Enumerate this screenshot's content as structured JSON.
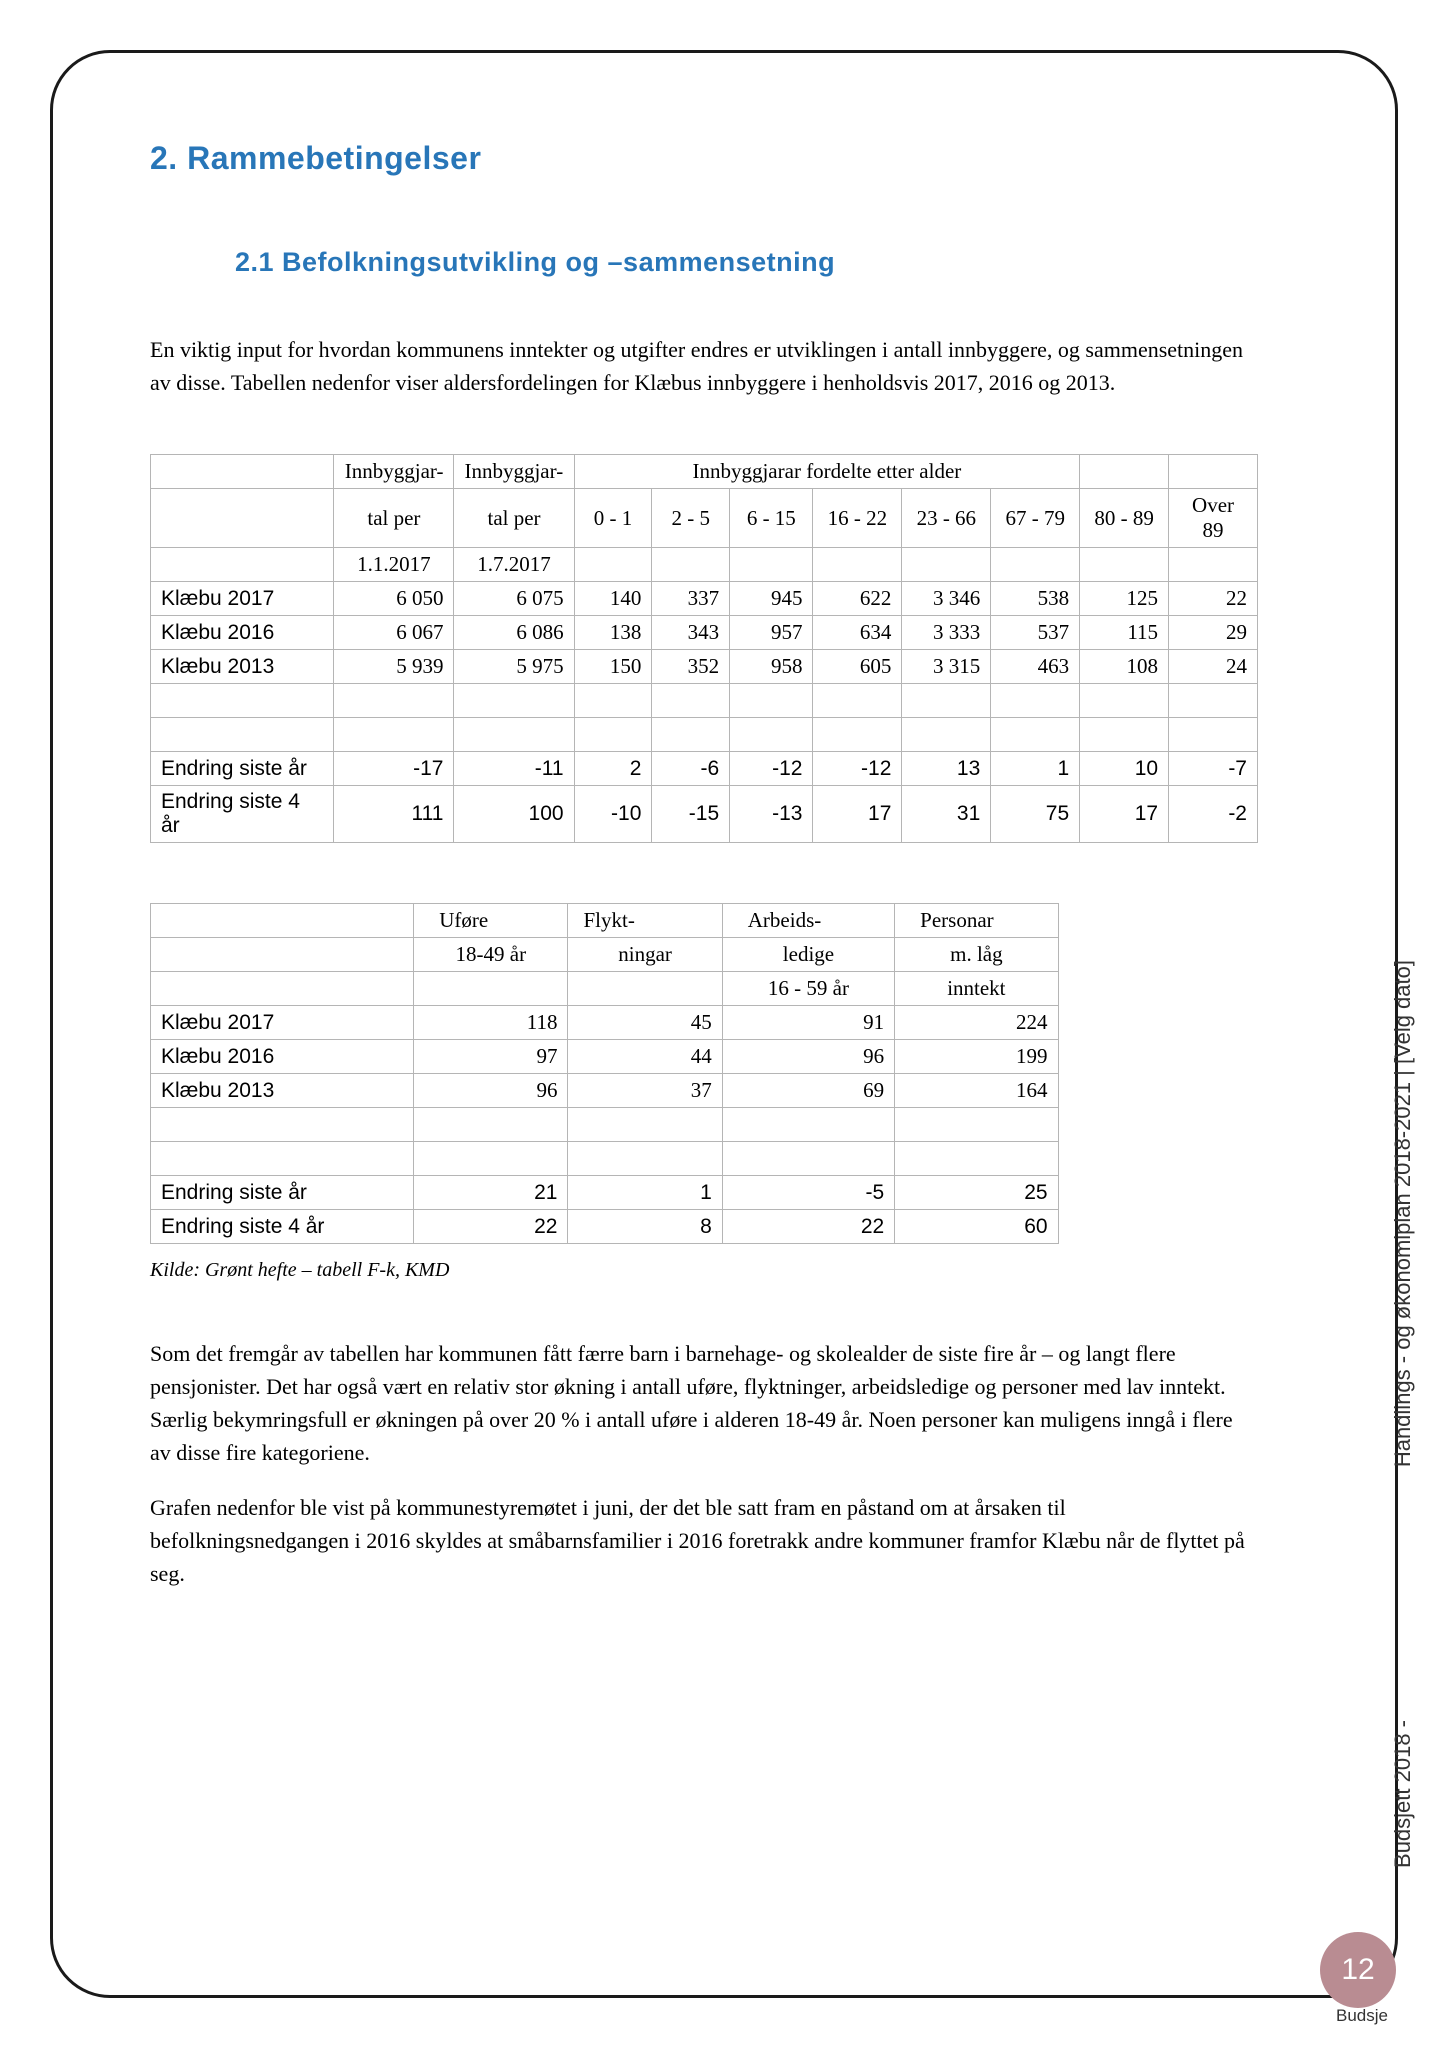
{
  "headings": {
    "h1": "2. Rammebetingelser",
    "h2": "2.1 Befolkningsutvikling og –sammensetning"
  },
  "paragraphs": {
    "intro": "En viktig input for hvordan kommunens inntekter og utgifter endres er utviklingen i antall innbyggere, og sammensetningen av disse. Tabellen nedenfor viser aldersfordelingen for Klæbus innbyggere i henholdsvis 2017, 2016 og 2013.",
    "analysis": "Som det fremgår av tabellen har kommunen fått færre barn i barnehage- og skolealder de siste fire år – og langt flere pensjonister. Det har også vært en relativ stor økning i antall uføre, flyktninger, arbeidsledige og personer med lav inntekt. Særlig bekymringsfull er økningen på over 20 % i antall uføre i alderen 18-49 år. Noen personer kan muligens inngå i flere av disse fire kategoriene.",
    "closing": "Grafen nedenfor ble vist på kommunestyremøtet i juni, der det ble satt fram en påstand om at årsaken til befolkningsnedgangen i 2016 skyldes at småbarnsfamilier i 2016 foretrakk andre kommuner framfor Klæbu når de flyttet på seg."
  },
  "table1": {
    "header_group_left": "Innbyggjar-",
    "header_group_left2": "Innbyggjar-",
    "header_group_right": "Innbyggjarar fordelte etter alder",
    "sub_headers": {
      "c1": "tal per",
      "c2": "tal per",
      "c3": "0 - 1",
      "c4": "2 - 5",
      "c5": "6 - 15",
      "c6": "16 - 22",
      "c7": "23 - 66",
      "c8": "67 - 79",
      "c9": "80 - 89",
      "c10": "Over 89"
    },
    "sub_headers_2": {
      "c1": "1.1.2017",
      "c2": "1.7.2017"
    },
    "rows": [
      {
        "label": "Klæbu 2017",
        "c1": "6 050",
        "c2": "6 075",
        "c3": "140",
        "c4": "337",
        "c5": "945",
        "c6": "622",
        "c7": "3 346",
        "c8": "538",
        "c9": "125",
        "c10": "22"
      },
      {
        "label": "Klæbu 2016",
        "c1": "6 067",
        "c2": "6 086",
        "c3": "138",
        "c4": "343",
        "c5": "957",
        "c6": "634",
        "c7": "3 333",
        "c8": "537",
        "c9": "115",
        "c10": "29"
      },
      {
        "label": "Klæbu 2013",
        "c1": "5 939",
        "c2": "5 975",
        "c3": "150",
        "c4": "352",
        "c5": "958",
        "c6": "605",
        "c7": "3 315",
        "c8": "463",
        "c9": "108",
        "c10": "24"
      }
    ],
    "endring_rows": [
      {
        "label": "Endring siste år",
        "c1": "-17",
        "c2": "-11",
        "c3": "2",
        "c4": "-6",
        "c5": "-12",
        "c6": "-12",
        "c7": "13",
        "c8": "1",
        "c9": "10",
        "c10": "-7"
      },
      {
        "label": "Endring siste 4 år",
        "c1": "111",
        "c2": "100",
        "c3": "-10",
        "c4": "-15",
        "c5": "-13",
        "c6": "17",
        "c7": "31",
        "c8": "75",
        "c9": "17",
        "c10": "-2"
      }
    ]
  },
  "table2": {
    "headers_r1": {
      "c1": "Uføre",
      "c2": "Flykt-",
      "c3": "Arbeids-",
      "c4": "Personar"
    },
    "headers_r2": {
      "c1": "18-49 år",
      "c2": "ningar",
      "c3": "ledige",
      "c4": "m. låg"
    },
    "headers_r3": {
      "c3": "16 - 59 år",
      "c4": "inntekt"
    },
    "rows": [
      {
        "label": "Klæbu 2017",
        "c1": "118",
        "c2": "45",
        "c3": "91",
        "c4": "224"
      },
      {
        "label": "Klæbu 2016",
        "c1": "97",
        "c2": "44",
        "c3": "96",
        "c4": "199"
      },
      {
        "label": "Klæbu 2013",
        "c1": "96",
        "c2": "37",
        "c3": "69",
        "c4": "164"
      }
    ],
    "endring_rows": [
      {
        "label": "Endring siste år",
        "c1": "21",
        "c2": "1",
        "c3": "-5",
        "c4": "25"
      },
      {
        "label": "Endring siste 4 år",
        "c1": "22",
        "c2": "8",
        "c3": "22",
        "c4": "60"
      }
    ]
  },
  "source_note": "Kilde: Grønt hefte – tabell F-k, KMD",
  "side_text_1": "Handlings - og økonomiplan 2018-2021 |  [Velg dato]",
  "side_text_2": "Budsjett 2018 -",
  "page_number": "12",
  "page_label": "Budsje"
}
